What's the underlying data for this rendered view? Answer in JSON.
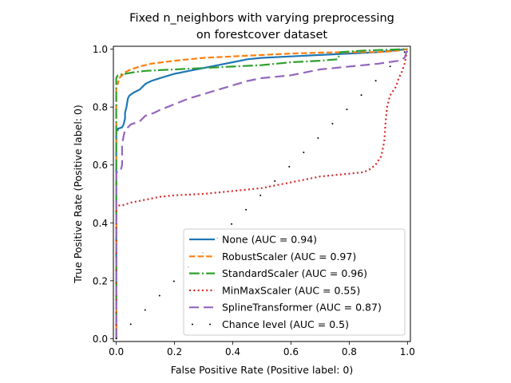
{
  "chart_data": {
    "type": "line",
    "title_lines": [
      "Fixed n_neighbors with varying preprocessing",
      "on forestcover dataset"
    ],
    "xlabel": "False Positive Rate (Positive label: 0)",
    "ylabel": "True Positive Rate (Positive label: 0)",
    "xlim": [
      -0.01,
      1.01
    ],
    "ylim": [
      -0.01,
      1.01
    ],
    "xticks": [
      0.0,
      0.2,
      0.4,
      0.6,
      0.8,
      1.0
    ],
    "xtick_labels": [
      "0.0",
      "0.2",
      "0.4",
      "0.6",
      "0.8",
      "1.0"
    ],
    "yticks": [
      0.0,
      0.2,
      0.4,
      0.6,
      0.8,
      1.0
    ],
    "ytick_labels": [
      "0.0",
      "0.2",
      "0.4",
      "0.6",
      "0.8",
      "1.0"
    ],
    "grid": false,
    "legend_position": "lower-right",
    "series": [
      {
        "name": "None (AUC = 0.94)",
        "color": "#1f77b4",
        "style": "solid",
        "points": [
          [
            0,
            0
          ],
          [
            0,
            0.72
          ],
          [
            0.005,
            0.72
          ],
          [
            0.005,
            0.725
          ],
          [
            0.02,
            0.73
          ],
          [
            0.025,
            0.74
          ],
          [
            0.03,
            0.76
          ],
          [
            0.03,
            0.78
          ],
          [
            0.035,
            0.8
          ],
          [
            0.04,
            0.83
          ],
          [
            0.045,
            0.84
          ],
          [
            0.06,
            0.85
          ],
          [
            0.08,
            0.86
          ],
          [
            0.09,
            0.87
          ],
          [
            0.1,
            0.88
          ],
          [
            0.12,
            0.89
          ],
          [
            0.15,
            0.9
          ],
          [
            0.2,
            0.915
          ],
          [
            0.25,
            0.925
          ],
          [
            0.3,
            0.935
          ],
          [
            0.35,
            0.945
          ],
          [
            0.4,
            0.955
          ],
          [
            0.45,
            0.965
          ],
          [
            0.5,
            0.97
          ],
          [
            0.6,
            0.975
          ],
          [
            0.7,
            0.98
          ],
          [
            0.8,
            0.985
          ],
          [
            0.9,
            0.99
          ],
          [
            0.95,
            0.995
          ],
          [
            1.0,
            1.0
          ]
        ]
      },
      {
        "name": "RobustScaler (AUC = 0.97)",
        "color": "#ff7f0e",
        "style": "dashed",
        "points": [
          [
            0,
            0
          ],
          [
            0,
            0.88
          ],
          [
            0.005,
            0.88
          ],
          [
            0.01,
            0.9
          ],
          [
            0.02,
            0.91
          ],
          [
            0.03,
            0.92
          ],
          [
            0.05,
            0.93
          ],
          [
            0.08,
            0.94
          ],
          [
            0.12,
            0.95
          ],
          [
            0.2,
            0.96
          ],
          [
            0.3,
            0.97
          ],
          [
            0.4,
            0.975
          ],
          [
            0.5,
            0.98
          ],
          [
            0.6,
            0.985
          ],
          [
            0.7,
            0.988
          ],
          [
            0.8,
            0.99
          ],
          [
            0.9,
            0.99
          ],
          [
            0.95,
            0.993
          ],
          [
            1.0,
            1.0
          ]
        ]
      },
      {
        "name": "StandardScaler (AUC = 0.96)",
        "color": "#2ca02c",
        "style": "dashdot",
        "points": [
          [
            0,
            0
          ],
          [
            0,
            0.9
          ],
          [
            0.005,
            0.91
          ],
          [
            0.03,
            0.915
          ],
          [
            0.06,
            0.92
          ],
          [
            0.1,
            0.925
          ],
          [
            0.2,
            0.93
          ],
          [
            0.3,
            0.935
          ],
          [
            0.4,
            0.94
          ],
          [
            0.5,
            0.945
          ],
          [
            0.6,
            0.955
          ],
          [
            0.7,
            0.96
          ],
          [
            0.76,
            0.965
          ],
          [
            0.77,
            0.99
          ],
          [
            0.85,
            0.995
          ],
          [
            0.9,
            0.997
          ],
          [
            1.0,
            1.0
          ]
        ]
      },
      {
        "name": "MinMaxScaler (AUC = 0.55)",
        "color": "#d62728",
        "style": "dotted",
        "points": [
          [
            0,
            0
          ],
          [
            0,
            0.46
          ],
          [
            0.02,
            0.46
          ],
          [
            0.05,
            0.47
          ],
          [
            0.1,
            0.48
          ],
          [
            0.15,
            0.49
          ],
          [
            0.2,
            0.495
          ],
          [
            0.3,
            0.5
          ],
          [
            0.4,
            0.51
          ],
          [
            0.5,
            0.52
          ],
          [
            0.55,
            0.53
          ],
          [
            0.6,
            0.54
          ],
          [
            0.65,
            0.55
          ],
          [
            0.7,
            0.56
          ],
          [
            0.75,
            0.565
          ],
          [
            0.8,
            0.57
          ],
          [
            0.85,
            0.575
          ],
          [
            0.87,
            0.585
          ],
          [
            0.89,
            0.6
          ],
          [
            0.91,
            0.63
          ],
          [
            0.92,
            0.68
          ],
          [
            0.925,
            0.75
          ],
          [
            0.93,
            0.8
          ],
          [
            0.94,
            0.84
          ],
          [
            0.96,
            0.87
          ],
          [
            0.97,
            0.9
          ],
          [
            0.98,
            0.92
          ],
          [
            0.99,
            0.95
          ],
          [
            1.0,
            1.0
          ]
        ]
      },
      {
        "name": "SplineTransformer (AUC = 0.87)",
        "color": "#9467bd",
        "style": "longdash",
        "points": [
          [
            0,
            0
          ],
          [
            0,
            0.57
          ],
          [
            0.005,
            0.58
          ],
          [
            0.015,
            0.58
          ],
          [
            0.02,
            0.6
          ],
          [
            0.02,
            0.67
          ],
          [
            0.025,
            0.7
          ],
          [
            0.03,
            0.72
          ],
          [
            0.05,
            0.74
          ],
          [
            0.08,
            0.75
          ],
          [
            0.1,
            0.77
          ],
          [
            0.13,
            0.78
          ],
          [
            0.15,
            0.79
          ],
          [
            0.2,
            0.81
          ],
          [
            0.25,
            0.83
          ],
          [
            0.3,
            0.845
          ],
          [
            0.35,
            0.86
          ],
          [
            0.4,
            0.875
          ],
          [
            0.45,
            0.89
          ],
          [
            0.5,
            0.9
          ],
          [
            0.6,
            0.91
          ],
          [
            0.7,
            0.93
          ],
          [
            0.8,
            0.94
          ],
          [
            0.9,
            0.95
          ],
          [
            0.97,
            0.96
          ],
          [
            0.99,
            0.97
          ],
          [
            1.0,
            1.0
          ]
        ]
      },
      {
        "name": "Chance level (AUC = 0.5)",
        "color": "#000000",
        "style": "chance",
        "points": [
          [
            0,
            0
          ],
          [
            1,
            1
          ]
        ]
      }
    ]
  }
}
